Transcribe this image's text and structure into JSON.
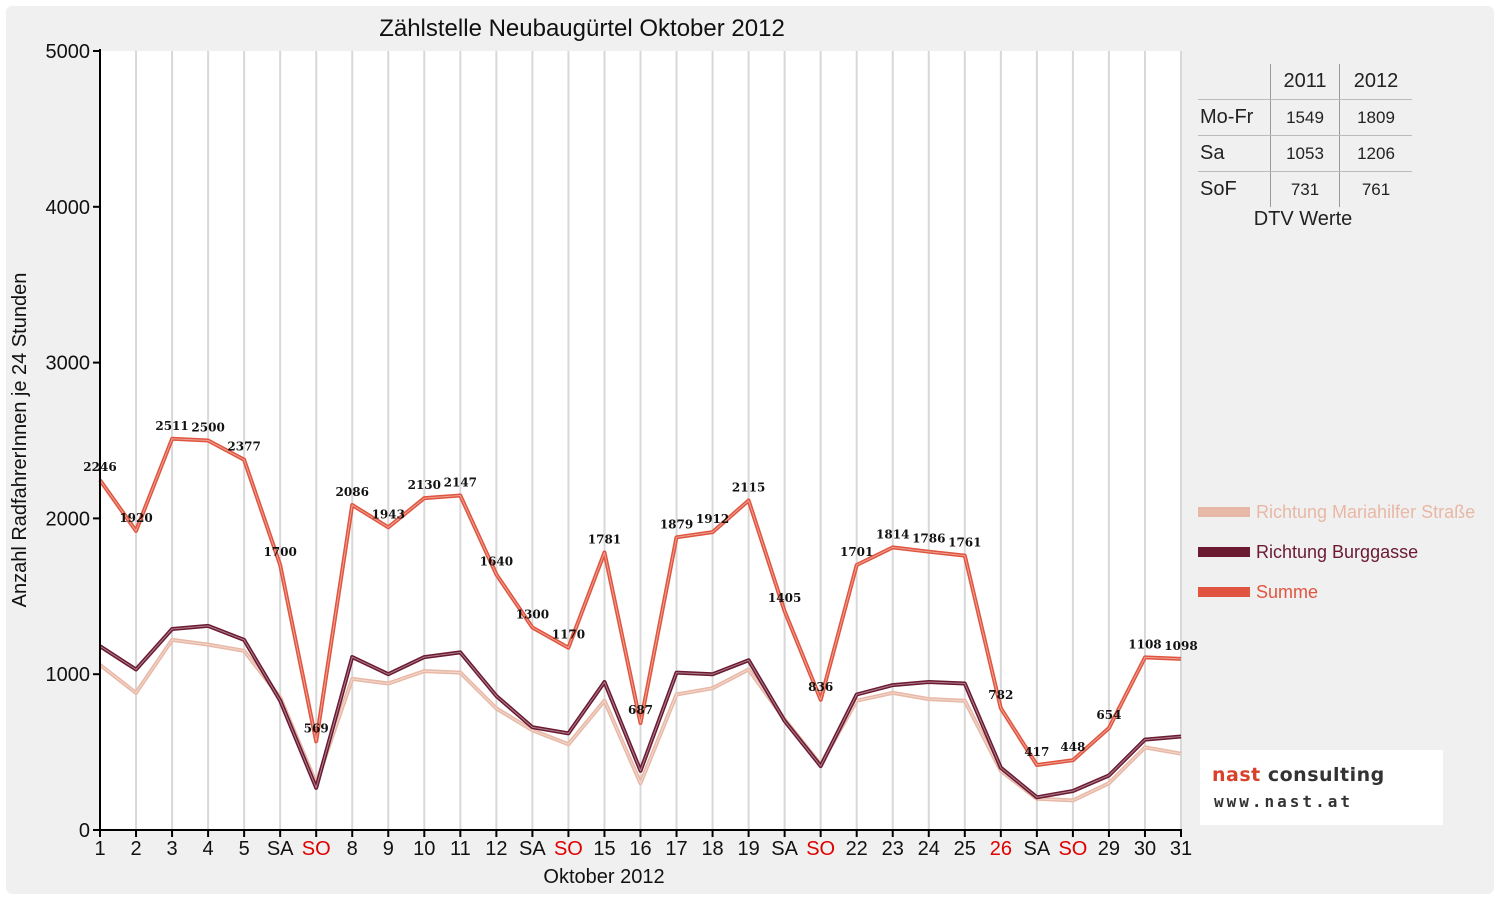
{
  "chart_data": {
    "type": "line",
    "title": "Zählstelle Neubaugürtel Oktober 2012",
    "xlabel": "Oktober 2012",
    "ylabel": "Anzahl RadfahrerInnen je 24 Stunden",
    "ylim": [
      0,
      5000
    ],
    "yticks": [
      "0",
      "1000",
      "2000",
      "3000",
      "4000",
      "5000"
    ],
    "grid": "vertical",
    "legend_position": "right",
    "categories": [
      "1",
      "2",
      "3",
      "4",
      "5",
      "SA",
      "SO",
      "8",
      "9",
      "10",
      "11",
      "12",
      "SA",
      "SO",
      "15",
      "16",
      "17",
      "18",
      "19",
      "SA",
      "SO",
      "22",
      "23",
      "24",
      "25",
      "26",
      "SA",
      "SO",
      "29",
      "30",
      "31"
    ],
    "red_categories": [
      6,
      13,
      20,
      25,
      27
    ],
    "series": [
      {
        "name": "Richtung Mariahilfer Straße",
        "color": "#e8b8a6",
        "values": [
          1060,
          880,
          1220,
          1190,
          1150,
          850,
          300,
          970,
          940,
          1020,
          1010,
          780,
          640,
          550,
          830,
          300,
          870,
          910,
          1030,
          710,
          420,
          830,
          880,
          840,
          830,
          380,
          200,
          190,
          300,
          530,
          490
        ]
      },
      {
        "name": "Richtung Burggasse",
        "color": "#6b1a32",
        "values": [
          1180,
          1030,
          1290,
          1310,
          1220,
          830,
          270,
          1110,
          1000,
          1110,
          1140,
          860,
          660,
          620,
          950,
          380,
          1010,
          1000,
          1090,
          700,
          410,
          870,
          930,
          950,
          940,
          400,
          210,
          250,
          350,
          580,
          600
        ]
      },
      {
        "name": "Summe",
        "color": "#e0553f",
        "values": [
          2246,
          1920,
          2511,
          2500,
          2377,
          1700,
          569,
          2086,
          1943,
          2130,
          2147,
          1640,
          1300,
          1170,
          1781,
          687,
          1879,
          1912,
          2115,
          1405,
          836,
          1701,
          1814,
          1786,
          1761,
          782,
          417,
          448,
          654,
          1108,
          1098
        ]
      }
    ],
    "data_labels": [
      "2246",
      "1920",
      "2511",
      "2500",
      "2377",
      "1700",
      "569",
      "2086",
      "1943",
      "2130",
      "2147",
      "1640",
      "1300",
      "1170",
      "1781",
      "687",
      "1879",
      "1912",
      "2115",
      "1405",
      "836",
      "1701",
      "1814",
      "1786",
      "1761",
      "782",
      "417",
      "448",
      "654",
      "1108",
      "1098"
    ]
  },
  "dtv_table": {
    "col_headers": [
      "2011",
      "2012"
    ],
    "rows": [
      {
        "label": "Mo-Fr",
        "v2011": "1549",
        "v2012": "1809"
      },
      {
        "label": "Sa",
        "v2011": "1053",
        "v2012": "1206"
      },
      {
        "label": "SoF",
        "v2011": "731",
        "v2012": "761"
      }
    ],
    "caption": "DTV Werte"
  },
  "logo": {
    "name_part1": "nast",
    "name_part2": " consulting",
    "url": "www.nast.at"
  }
}
